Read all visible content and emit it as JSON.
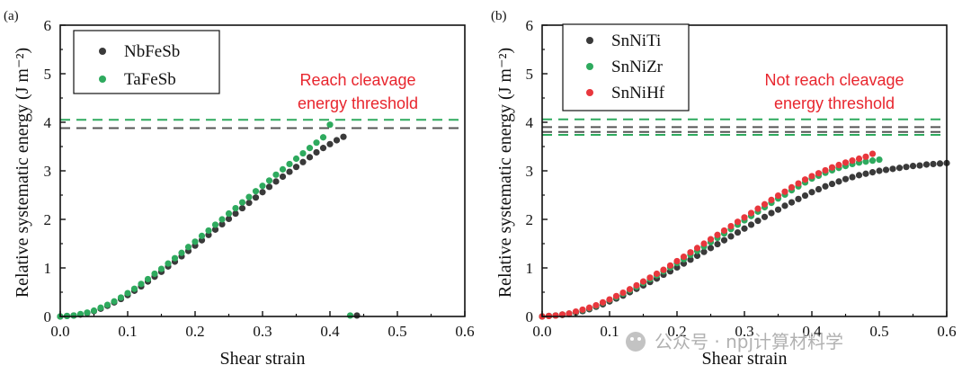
{
  "chart_data": [
    {
      "panel": "(a)",
      "type": "scatter",
      "xlabel": "Shear strain",
      "ylabel": "Relative systematic energy (J m⁻²)",
      "xlim": [
        0,
        0.6
      ],
      "ylim": [
        0,
        6
      ],
      "xticks": [
        "0.0",
        "0.1",
        "0.2",
        "0.3",
        "0.4",
        "0.5",
        "0.6"
      ],
      "yticks": [
        "0",
        "1",
        "2",
        "3",
        "4",
        "5",
        "6"
      ],
      "grid": false,
      "legend": "top-left",
      "annotation": [
        "Reach cleavage",
        "energy threshold"
      ],
      "thresholds": [
        {
          "series": "NbFeSb",
          "y": 3.88,
          "color": "#555555"
        },
        {
          "series": "TaFeSb",
          "y": 4.05,
          "color": "#2eaa5e"
        }
      ],
      "series": [
        {
          "name": "NbFeSb",
          "color": "#3a3a3a",
          "x": [
            0.0,
            0.01,
            0.02,
            0.03,
            0.04,
            0.05,
            0.06,
            0.07,
            0.08,
            0.09,
            0.1,
            0.11,
            0.12,
            0.13,
            0.14,
            0.15,
            0.16,
            0.17,
            0.18,
            0.19,
            0.2,
            0.21,
            0.22,
            0.23,
            0.24,
            0.25,
            0.26,
            0.27,
            0.28,
            0.29,
            0.3,
            0.31,
            0.32,
            0.33,
            0.34,
            0.35,
            0.36,
            0.37,
            0.38,
            0.39,
            0.4,
            0.41,
            0.42,
            0.44
          ],
          "y": [
            0.0,
            0.01,
            0.02,
            0.04,
            0.07,
            0.11,
            0.16,
            0.22,
            0.29,
            0.36,
            0.44,
            0.53,
            0.62,
            0.72,
            0.82,
            0.92,
            1.03,
            1.13,
            1.24,
            1.35,
            1.46,
            1.57,
            1.68,
            1.79,
            1.9,
            2.01,
            2.12,
            2.23,
            2.34,
            2.45,
            2.56,
            2.67,
            2.78,
            2.88,
            2.98,
            3.08,
            3.18,
            3.28,
            3.38,
            3.47,
            3.55,
            3.63,
            3.7,
            0.02
          ]
        },
        {
          "name": "TaFeSb",
          "color": "#2eaa5e",
          "x": [
            0.0,
            0.01,
            0.02,
            0.03,
            0.04,
            0.05,
            0.06,
            0.07,
            0.08,
            0.09,
            0.1,
            0.11,
            0.12,
            0.13,
            0.14,
            0.15,
            0.16,
            0.17,
            0.18,
            0.19,
            0.2,
            0.21,
            0.22,
            0.23,
            0.24,
            0.25,
            0.26,
            0.27,
            0.28,
            0.29,
            0.3,
            0.31,
            0.32,
            0.33,
            0.34,
            0.35,
            0.36,
            0.37,
            0.38,
            0.39,
            0.4,
            0.43
          ],
          "y": [
            0.0,
            0.01,
            0.02,
            0.05,
            0.08,
            0.12,
            0.18,
            0.24,
            0.31,
            0.39,
            0.48,
            0.57,
            0.67,
            0.77,
            0.88,
            0.98,
            1.09,
            1.2,
            1.31,
            1.43,
            1.54,
            1.66,
            1.77,
            1.89,
            2.0,
            2.12,
            2.23,
            2.35,
            2.46,
            2.58,
            2.69,
            2.8,
            2.92,
            3.03,
            3.14,
            3.25,
            3.36,
            3.47,
            3.58,
            3.69,
            3.95,
            0.02
          ]
        }
      ]
    },
    {
      "panel": "(b)",
      "type": "scatter",
      "xlabel": "Shear strain",
      "ylabel": "Relative systematic energy (J m⁻²)",
      "xlim": [
        0,
        0.6
      ],
      "ylim": [
        0,
        6
      ],
      "xticks": [
        "0.0",
        "0.1",
        "0.2",
        "0.3",
        "0.4",
        "0.5",
        "0.6"
      ],
      "yticks": [
        "0",
        "1",
        "2",
        "3",
        "4",
        "5",
        "6"
      ],
      "grid": false,
      "legend": "top-left",
      "annotation": [
        "Not reach cleavage",
        "energy threshold"
      ],
      "thresholds": [
        {
          "series": "SnNiZr",
          "y": 4.06,
          "color": "#2eaa5e"
        },
        {
          "series": "SnNiTi",
          "y": 3.9,
          "color": "#555555"
        },
        {
          "series": "SnNiHf",
          "y": 3.8,
          "color": "#555555"
        },
        {
          "series": "SnNiZr",
          "y": 3.74,
          "color": "#2eaa5e"
        }
      ],
      "series": [
        {
          "name": "SnNiTi",
          "color": "#3a3a3a",
          "x": [
            0.0,
            0.01,
            0.02,
            0.03,
            0.04,
            0.05,
            0.06,
            0.07,
            0.08,
            0.09,
            0.1,
            0.11,
            0.12,
            0.13,
            0.14,
            0.15,
            0.16,
            0.17,
            0.18,
            0.19,
            0.2,
            0.21,
            0.22,
            0.23,
            0.24,
            0.25,
            0.26,
            0.27,
            0.28,
            0.29,
            0.3,
            0.31,
            0.32,
            0.33,
            0.34,
            0.35,
            0.36,
            0.37,
            0.38,
            0.39,
            0.4,
            0.41,
            0.42,
            0.43,
            0.44,
            0.45,
            0.46,
            0.47,
            0.48,
            0.49,
            0.5,
            0.51,
            0.52,
            0.53,
            0.54,
            0.55,
            0.56,
            0.57,
            0.58,
            0.59,
            0.6
          ],
          "y": [
            0.0,
            0.01,
            0.02,
            0.03,
            0.05,
            0.08,
            0.11,
            0.15,
            0.2,
            0.25,
            0.31,
            0.37,
            0.43,
            0.5,
            0.57,
            0.64,
            0.71,
            0.78,
            0.86,
            0.93,
            1.01,
            1.09,
            1.17,
            1.25,
            1.33,
            1.41,
            1.49,
            1.57,
            1.65,
            1.73,
            1.81,
            1.89,
            1.97,
            2.05,
            2.13,
            2.2,
            2.28,
            2.35,
            2.42,
            2.49,
            2.56,
            2.62,
            2.68,
            2.73,
            2.78,
            2.83,
            2.87,
            2.91,
            2.94,
            2.97,
            3.0,
            3.02,
            3.04,
            3.06,
            3.08,
            3.1,
            3.11,
            3.13,
            3.14,
            3.15,
            3.16
          ]
        },
        {
          "name": "SnNiZr",
          "color": "#2eaa5e",
          "x": [
            0.0,
            0.01,
            0.02,
            0.03,
            0.04,
            0.05,
            0.06,
            0.07,
            0.08,
            0.09,
            0.1,
            0.11,
            0.12,
            0.13,
            0.14,
            0.15,
            0.16,
            0.17,
            0.18,
            0.19,
            0.2,
            0.21,
            0.22,
            0.23,
            0.24,
            0.25,
            0.26,
            0.27,
            0.28,
            0.29,
            0.3,
            0.31,
            0.32,
            0.33,
            0.34,
            0.35,
            0.36,
            0.37,
            0.38,
            0.39,
            0.4,
            0.41,
            0.42,
            0.43,
            0.44,
            0.45,
            0.46,
            0.47,
            0.48,
            0.49,
            0.5
          ],
          "y": [
            0.0,
            0.01,
            0.02,
            0.04,
            0.06,
            0.09,
            0.13,
            0.17,
            0.22,
            0.28,
            0.34,
            0.4,
            0.47,
            0.54,
            0.61,
            0.69,
            0.77,
            0.85,
            0.93,
            1.01,
            1.1,
            1.18,
            1.27,
            1.35,
            1.44,
            1.53,
            1.62,
            1.71,
            1.8,
            1.89,
            1.98,
            2.07,
            2.16,
            2.25,
            2.34,
            2.43,
            2.51,
            2.6,
            2.68,
            2.76,
            2.84,
            2.9,
            2.96,
            3.01,
            3.06,
            3.1,
            3.14,
            3.17,
            3.19,
            3.21,
            3.23
          ]
        },
        {
          "name": "SnNiHf",
          "color": "#e8373d",
          "x": [
            0.0,
            0.01,
            0.02,
            0.03,
            0.04,
            0.05,
            0.06,
            0.07,
            0.08,
            0.09,
            0.1,
            0.11,
            0.12,
            0.13,
            0.14,
            0.15,
            0.16,
            0.17,
            0.18,
            0.19,
            0.2,
            0.21,
            0.22,
            0.23,
            0.24,
            0.25,
            0.26,
            0.27,
            0.28,
            0.29,
            0.3,
            0.31,
            0.32,
            0.33,
            0.34,
            0.35,
            0.36,
            0.37,
            0.38,
            0.39,
            0.4,
            0.41,
            0.42,
            0.43,
            0.44,
            0.45,
            0.46,
            0.47,
            0.48,
            0.49
          ],
          "y": [
            0.0,
            0.01,
            0.02,
            0.04,
            0.06,
            0.1,
            0.14,
            0.18,
            0.23,
            0.29,
            0.35,
            0.42,
            0.49,
            0.56,
            0.64,
            0.72,
            0.8,
            0.88,
            0.96,
            1.05,
            1.14,
            1.23,
            1.32,
            1.41,
            1.5,
            1.59,
            1.68,
            1.77,
            1.86,
            1.95,
            2.04,
            2.13,
            2.22,
            2.31,
            2.4,
            2.49,
            2.57,
            2.66,
            2.74,
            2.82,
            2.89,
            2.95,
            3.01,
            3.07,
            3.12,
            3.17,
            3.21,
            3.25,
            3.29,
            3.35
          ]
        }
      ]
    }
  ],
  "watermark": {
    "text": "公众号 · npj计算材料学"
  }
}
